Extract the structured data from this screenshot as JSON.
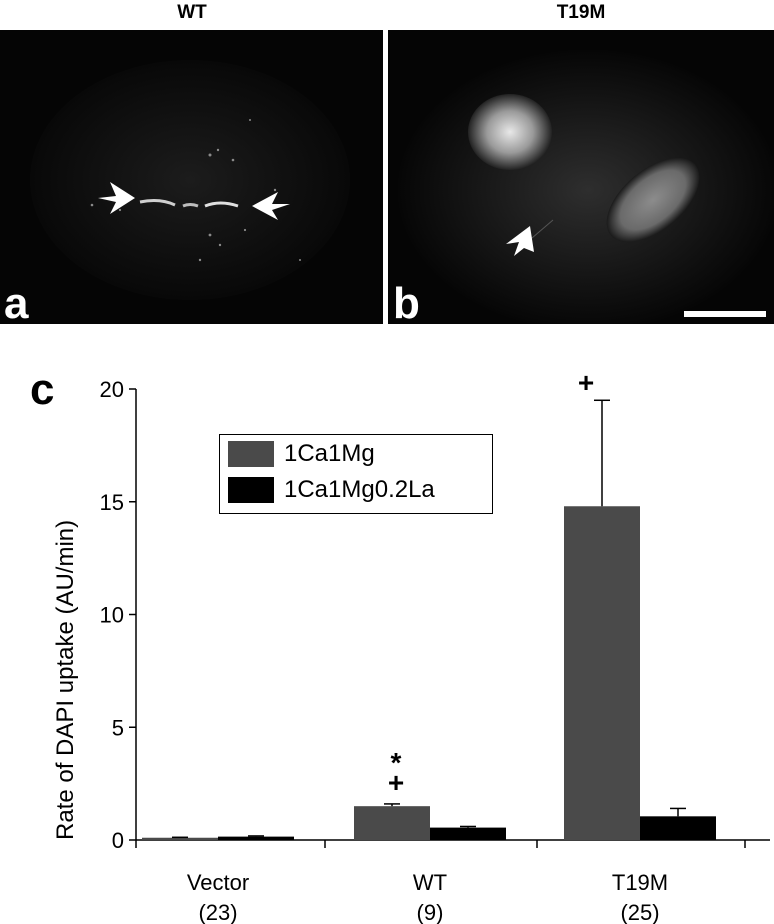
{
  "panels": {
    "a": {
      "title": "WT",
      "label": "a"
    },
    "b": {
      "title": "T19M",
      "label": "b"
    },
    "c": {
      "label": "c"
    }
  },
  "colors": {
    "series1": "#4a4a4a",
    "series2": "#000000"
  },
  "chart_data": {
    "type": "bar",
    "title": "",
    "xlabel": "",
    "ylabel": "Rate of DAPI uptake (AU/min)",
    "ylim": [
      0,
      20
    ],
    "yticks": [
      0,
      5,
      10,
      15,
      20
    ],
    "categories": [
      "Vector",
      "WT",
      "T19M"
    ],
    "category_counts": [
      "(23)",
      "(9)",
      "(25)"
    ],
    "series": [
      {
        "name": "1Ca1Mg",
        "values": [
          0.1,
          1.5,
          14.8
        ],
        "errors": [
          0.02,
          0.1,
          4.7
        ]
      },
      {
        "name": "1Ca1Mg0.2La",
        "values": [
          0.15,
          0.55,
          1.05
        ],
        "errors": [
          0.03,
          0.05,
          0.35
        ]
      }
    ],
    "legend_position": "top-left",
    "annotations": [
      {
        "category": "WT",
        "text": "+"
      },
      {
        "category": "WT",
        "text": "*"
      },
      {
        "category": "T19M",
        "text": "+"
      }
    ]
  }
}
